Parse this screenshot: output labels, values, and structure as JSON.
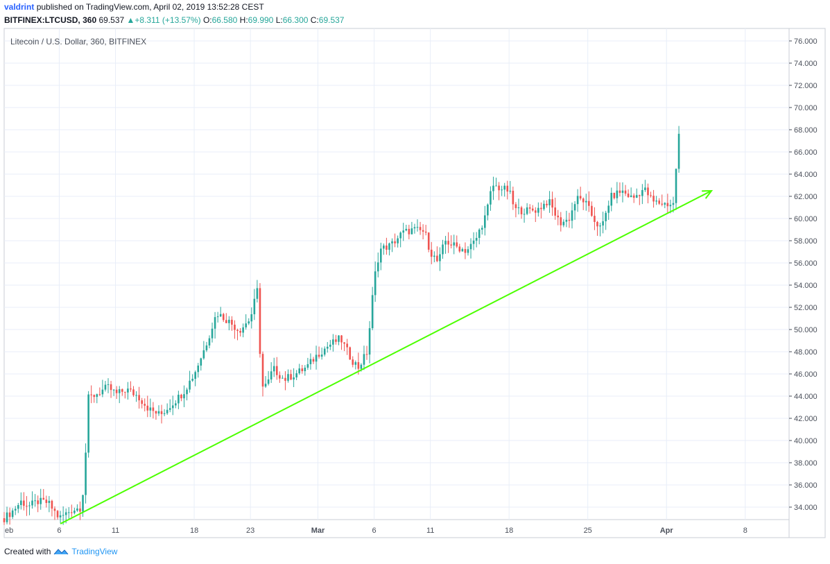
{
  "header": {
    "author": "valdrint",
    "published_text": "published on TradingView.com, April 02, 2019 13:52:28 CEST",
    "symbol": "BITFINEX:LTCUSD, 360",
    "last_price": "69.537",
    "change_text": "+8.311 (+13.57%)",
    "open_label": "O:",
    "open": "66.580",
    "high_label": "H:",
    "high": "69.990",
    "low_label": "L:",
    "low": "66.300",
    "close_label": "C:",
    "close": "69.537"
  },
  "panel_title": "Litecoin / U.S. Dollar, 360, BITFINEX",
  "footer": {
    "created_with": "Created with",
    "brand": "TradingView"
  },
  "colors": {
    "up": "#26a69a",
    "down": "#ef5350",
    "trendline": "#4cff00",
    "grid": "#e8eef8",
    "axis": "#4a4f5a"
  },
  "chart_data": {
    "type": "candlestick",
    "title": "Litecoin / U.S. Dollar, 360, BITFINEX",
    "ylim": [
      32,
      76
    ],
    "y_ticks": [
      "76.000",
      "74.000",
      "72.000",
      "70.000",
      "68.000",
      "66.000",
      "64.000",
      "62.000",
      "60.000",
      "58.000",
      "56.000",
      "54.000",
      "52.000",
      "50.000",
      "48.000",
      "46.000",
      "44.000",
      "42.000",
      "40.000",
      "38.000",
      "36.000",
      "34.000"
    ],
    "x_tick_labels": [
      "eb",
      "6",
      "11",
      "18",
      "23",
      "Mar",
      "6",
      "11",
      "18",
      "25",
      "Apr",
      "8"
    ],
    "x_tick_days": [
      1,
      6,
      11,
      18,
      23,
      29,
      34,
      39,
      46,
      53,
      60,
      67
    ],
    "x_range_days": [
      1.1,
      70.9
    ],
    "grid": true,
    "close_path": [
      [
        1.1,
        33.0
      ],
      [
        1.8,
        33.6
      ],
      [
        2.6,
        34.5
      ],
      [
        3.3,
        34.1
      ],
      [
        4.1,
        34.5
      ],
      [
        5.0,
        34.4
      ],
      [
        6.0,
        33.0
      ],
      [
        7.0,
        33.7
      ],
      [
        8.0,
        34.0
      ],
      [
        8.3,
        38.0
      ],
      [
        8.6,
        43.8
      ],
      [
        9.3,
        44.2
      ],
      [
        10.3,
        44.8
      ],
      [
        11.1,
        44.2
      ],
      [
        12.0,
        44.6
      ],
      [
        13.0,
        44.0
      ],
      [
        14.0,
        42.8
      ],
      [
        15.0,
        42.3
      ],
      [
        16.0,
        43.3
      ],
      [
        17.0,
        44.3
      ],
      [
        18.0,
        46.0
      ],
      [
        19.0,
        48.5
      ],
      [
        20.0,
        51.5
      ],
      [
        21.0,
        50.8
      ],
      [
        22.0,
        49.9
      ],
      [
        23.0,
        51.0
      ],
      [
        23.6,
        53.5
      ],
      [
        24.0,
        44.8
      ],
      [
        24.5,
        45.0
      ],
      [
        25.0,
        46.5
      ],
      [
        26.0,
        45.5
      ],
      [
        27.0,
        46.0
      ],
      [
        28.0,
        46.6
      ],
      [
        29.0,
        47.8
      ],
      [
        30.0,
        48.6
      ],
      [
        31.0,
        49.2
      ],
      [
        32.0,
        47.3
      ],
      [
        32.6,
        46.6
      ],
      [
        33.4,
        48.0
      ],
      [
        34.0,
        54.5
      ],
      [
        34.5,
        57.2
      ],
      [
        35.5,
        57.6
      ],
      [
        36.5,
        58.7
      ],
      [
        37.5,
        59.0
      ],
      [
        38.5,
        58.8
      ],
      [
        39.0,
        57.0
      ],
      [
        39.7,
        56.0
      ],
      [
        40.3,
        58.0
      ],
      [
        41.2,
        57.5
      ],
      [
        42.2,
        57.1
      ],
      [
        43.0,
        58.0
      ],
      [
        44.0,
        60.5
      ],
      [
        44.5,
        63.0
      ],
      [
        45.3,
        62.7
      ],
      [
        46.0,
        62.5
      ],
      [
        46.5,
        60.8
      ],
      [
        47.5,
        60.7
      ],
      [
        48.5,
        60.8
      ],
      [
        49.5,
        61.6
      ],
      [
        50.5,
        59.6
      ],
      [
        51.3,
        59.9
      ],
      [
        52.0,
        61.8
      ],
      [
        52.7,
        61.6
      ],
      [
        53.5,
        60.0
      ],
      [
        54.2,
        59.0
      ],
      [
        55.0,
        61.9
      ],
      [
        56.0,
        62.5
      ],
      [
        57.0,
        61.8
      ],
      [
        58.0,
        62.7
      ],
      [
        58.8,
        61.5
      ],
      [
        60.0,
        61.3
      ],
      [
        60.6,
        61.3
      ],
      [
        61.0,
        66.5
      ],
      [
        61.3,
        69.537
      ]
    ],
    "annotations": [
      {
        "type": "trendline_arrow",
        "from": {
          "day": 6.1,
          "price": 32.5
        },
        "to": {
          "day": 64.0,
          "price": 62.5
        }
      }
    ]
  }
}
